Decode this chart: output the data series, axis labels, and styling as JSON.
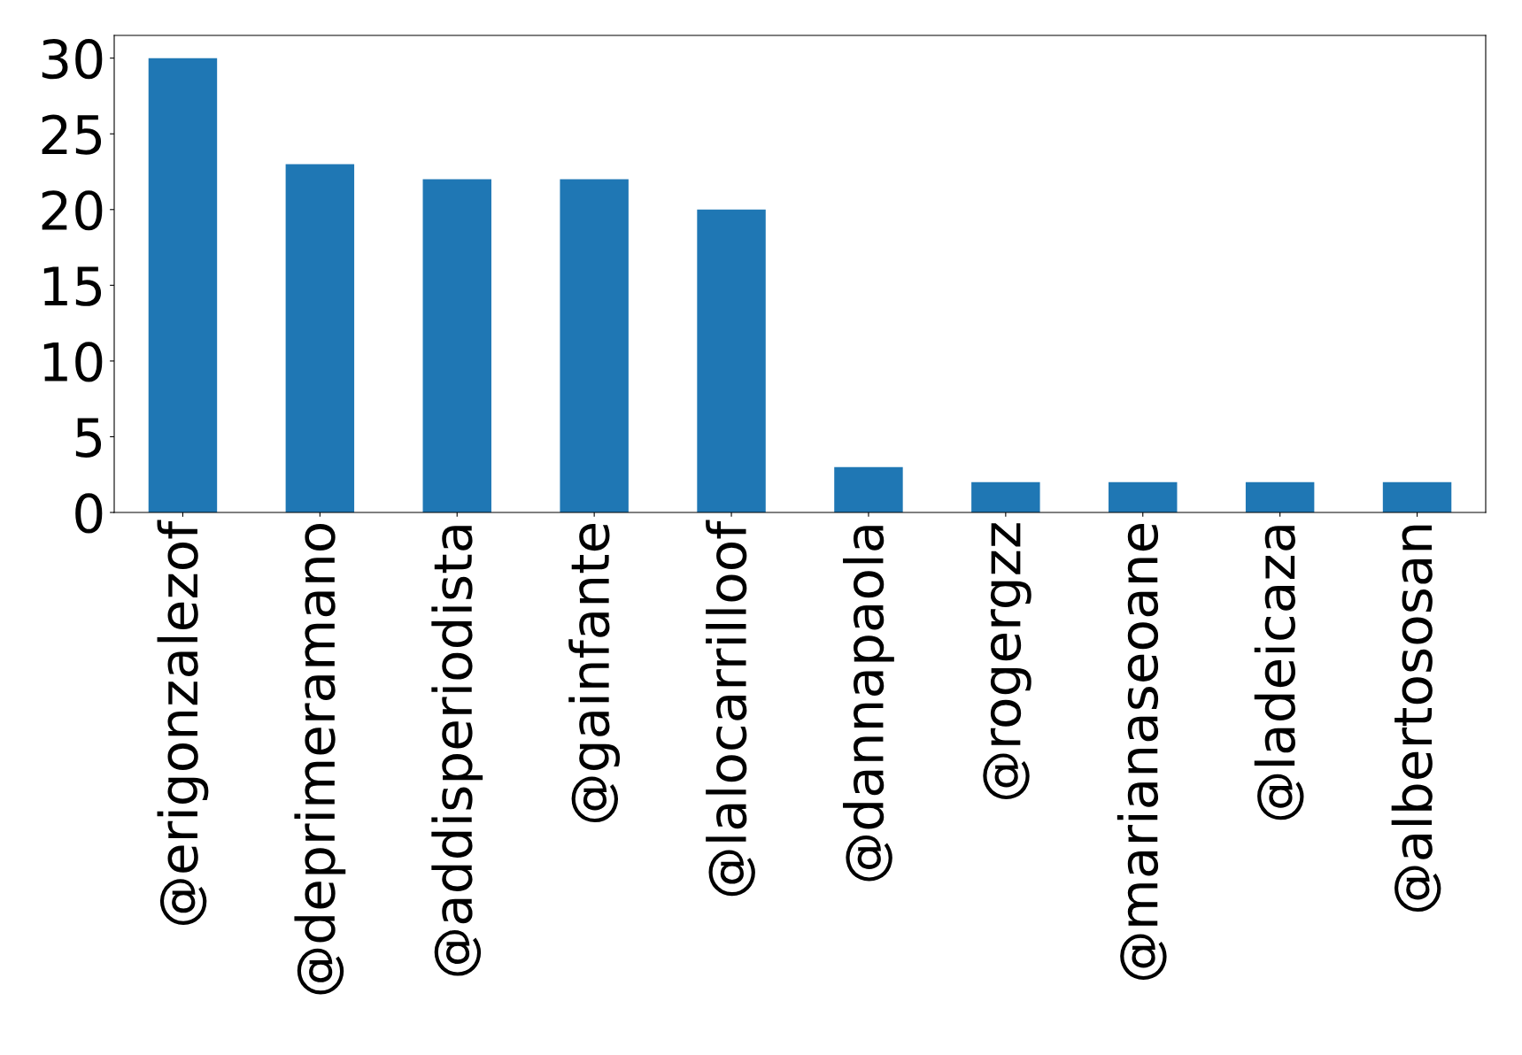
{
  "chart_data": {
    "type": "bar",
    "categories": [
      "@erigonzalezof",
      "@deprimeramano",
      "@addisperiodista",
      "@gainfante",
      "@lalocarrilloof",
      "@dannapaola",
      "@rogergzz",
      "@marianaseoane",
      "@ladeicaza",
      "@albertososan"
    ],
    "values": [
      30,
      23,
      22,
      22,
      20,
      3,
      2,
      2,
      2,
      2
    ],
    "color": "#1f77b4",
    "ylim": [
      0,
      31.5
    ],
    "yticks": [
      0,
      5,
      10,
      15,
      20,
      25,
      30
    ],
    "grid": false,
    "legend": false
  }
}
